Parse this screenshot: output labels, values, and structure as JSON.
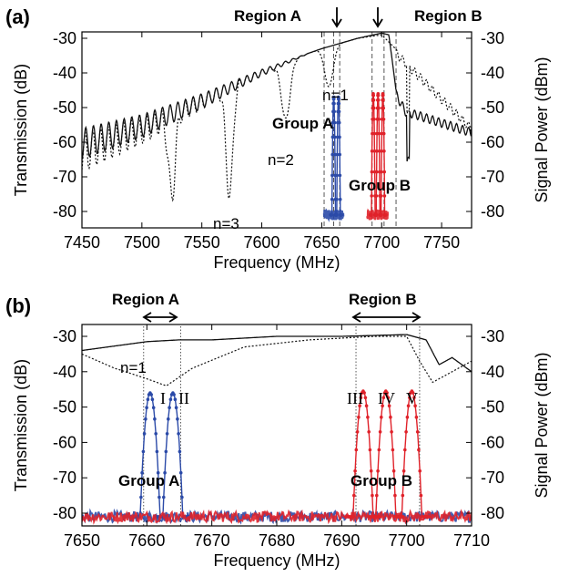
{
  "chart_data": [
    {
      "panel": "(a)",
      "type": "line",
      "xlabel": "Frequency (MHz)",
      "ylabel": "Transmission (dB)",
      "y2label": "Signal Power (dBm)",
      "xlim": [
        7450,
        7775
      ],
      "ylim": [
        -86,
        -25
      ],
      "xticks": [
        7450,
        7500,
        7550,
        7600,
        7650,
        7700,
        7750
      ],
      "yticks": [
        -80,
        -70,
        -60,
        -50,
        -40,
        -30
      ],
      "tick_labels_x": [
        "7450",
        "7500",
        "7550",
        "7600",
        "7650",
        "7700",
        "7750"
      ],
      "tick_labels_y": [
        "-30",
        "-40",
        "-50",
        "-60",
        "-70",
        "-80"
      ],
      "region_lines": [
        7652,
        7660,
        7665,
        7692,
        7702,
        7712
      ],
      "annotations": {
        "region_a": "Region A",
        "region_b": "Region B",
        "group_a": "Group A",
        "group_b": "Group B",
        "n1": "n=1",
        "n2": "n=2",
        "n3": "n=3"
      },
      "series": [
        {
          "style": "solid",
          "x": [
            7450,
            7500,
            7550,
            7600,
            7650,
            7680,
            7700,
            7706,
            7712,
            7720,
            7730,
            7775
          ],
          "y": [
            -56,
            -52,
            -46,
            -39,
            -33,
            -30,
            -28.5,
            -29,
            -45,
            -50,
            -51,
            -56
          ]
        },
        {
          "style": "dotted",
          "x": [
            7450,
            7500,
            7550,
            7600,
            7650,
            7680,
            7700,
            7775
          ],
          "y": [
            -56,
            -52,
            -46,
            -39,
            -33,
            -30,
            -29,
            -55
          ],
          "dips": [
            {
              "x": 7525,
              "depth": -72
            },
            {
              "x": 7573,
              "depth": -74
            },
            {
              "x": 7620,
              "depth": -53
            },
            {
              "x": 7656,
              "depth": -44
            }
          ]
        },
        {
          "name": "Group A",
          "color": "#2b4aa8",
          "peaks": [
            7660,
            7664
          ],
          "peak_dBm": -47,
          "floor_dBm": -81,
          "range": [
            7652,
            7668
          ]
        },
        {
          "name": "Group B",
          "color": "#e0222a",
          "peaks": [
            7693,
            7697,
            7701
          ],
          "peak_dBm": -46,
          "floor_dBm": -81,
          "range": [
            7688,
            7705
          ]
        }
      ]
    },
    {
      "panel": "(b)",
      "type": "line",
      "xlabel": "Frequency (MHz)",
      "ylabel": "Transmission (dB)",
      "y2label": "Signal Power (dBm)",
      "xlim": [
        7650,
        7710
      ],
      "ylim": [
        -86,
        -25
      ],
      "xticks": [
        7650,
        7660,
        7670,
        7680,
        7690,
        7700,
        7710
      ],
      "yticks": [
        -80,
        -70,
        -60,
        -50,
        -40,
        -30
      ],
      "tick_labels_x": [
        "7650",
        "7660",
        "7670",
        "7680",
        "7690",
        "7700",
        "7710"
      ],
      "tick_labels_y": [
        "-30",
        "-40",
        "-50",
        "-60",
        "-70",
        "-80"
      ],
      "region_lines": [
        7659.5,
        7665.2,
        7692.2,
        7702
      ],
      "annotations": {
        "region_a": "Region A",
        "region_b": "Region B",
        "group_a": "Group A",
        "group_b": "Group B",
        "n1": "n=1",
        "peak_labels": [
          "I",
          "II",
          "III",
          "IV",
          "V"
        ]
      },
      "series": [
        {
          "style": "solid",
          "x": [
            7650,
            7660,
            7665,
            7670,
            7680,
            7690,
            7700,
            7703,
            7705,
            7707,
            7710
          ],
          "y": [
            -34,
            -31.5,
            -31,
            -31,
            -30,
            -30,
            -29.5,
            -31,
            -38,
            -36,
            -40
          ]
        },
        {
          "style": "dotted",
          "x": [
            7650,
            7655,
            7660,
            7663,
            7667,
            7675,
            7685,
            7695,
            7700,
            7702,
            7704,
            7706,
            7710
          ],
          "y": [
            -35,
            -39,
            -42,
            -44,
            -39,
            -33,
            -31,
            -30,
            -30,
            -37,
            -43,
            -41,
            -37
          ]
        },
        {
          "name": "Group A",
          "color": "#2b4aa8",
          "peaks": [
            7660.5,
            7664
          ],
          "peak_dBm": -46,
          "floor_dBm": -81
        },
        {
          "name": "Group B",
          "color": "#e0222a",
          "peaks": [
            7693.3,
            7696.8,
            7700.8
          ],
          "peak_dBm": -45.5,
          "floor_dBm": -81
        }
      ]
    }
  ]
}
